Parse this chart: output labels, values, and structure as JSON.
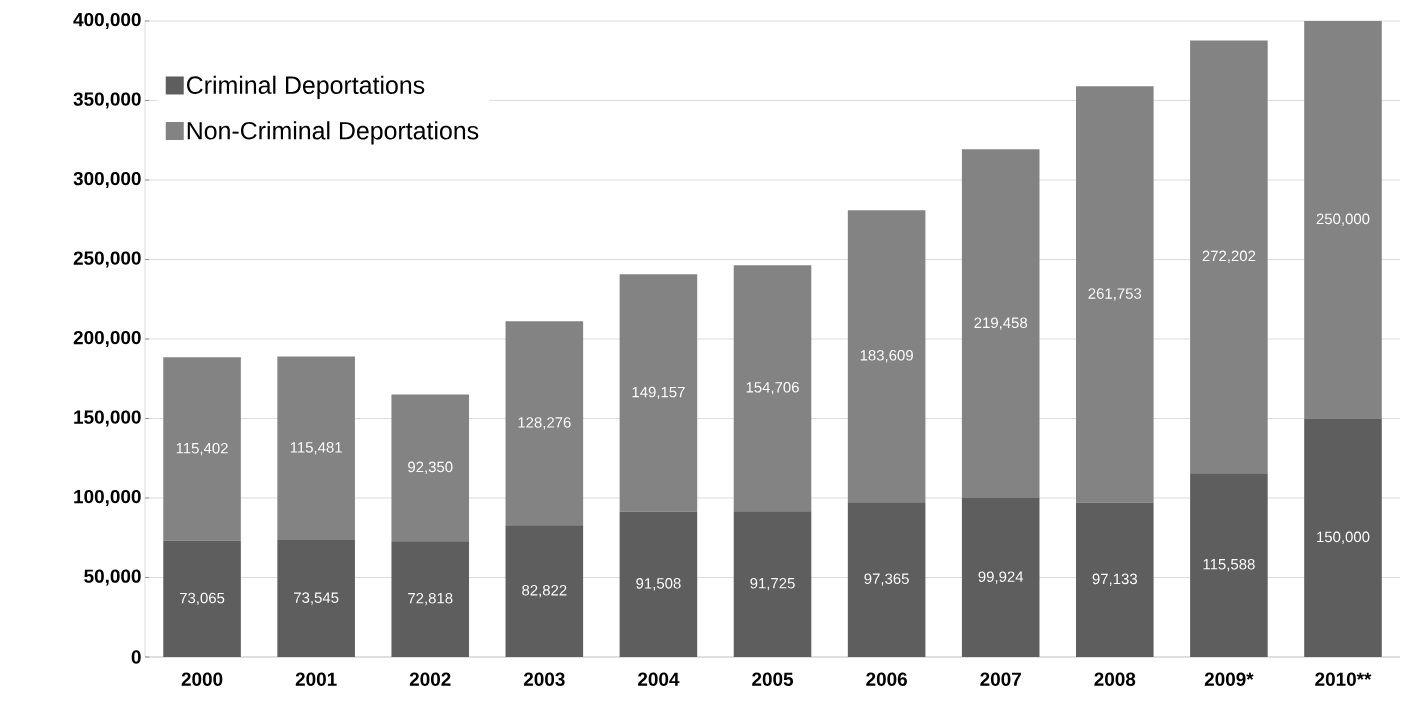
{
  "chart_data": {
    "type": "bar",
    "stacked": true,
    "categories": [
      "2000",
      "2001",
      "2002",
      "2003",
      "2004",
      "2005",
      "2006",
      "2007",
      "2008",
      "2009*",
      "2010**"
    ],
    "series": [
      {
        "name": "Criminal Deportations",
        "color": "#5e5e5e",
        "values": [
          73065,
          73545,
          72818,
          82822,
          91508,
          91725,
          97365,
          99924,
          97133,
          115588,
          150000
        ],
        "value_labels": [
          "73,065",
          "73,545",
          "72,818",
          "82,822",
          "91,508",
          "91,725",
          "97,365",
          "99,924",
          "97,133",
          "115,588",
          "150,000"
        ]
      },
      {
        "name": "Non-Criminal Deportations",
        "color": "#838383",
        "values": [
          115402,
          115481,
          92350,
          128276,
          149157,
          154706,
          183609,
          219458,
          261753,
          272202,
          250000
        ],
        "value_labels": [
          "115,402",
          "115,481",
          "92,350",
          "128,276",
          "149,157",
          "154,706",
          "183,609",
          "219,458",
          "261,753",
          "272,202",
          "250,000"
        ]
      }
    ],
    "ylim": [
      0,
      400000
    ],
    "yticks": [
      0,
      {
        "value": 50000,
        "label": "50,000"
      },
      {
        "value": 100000,
        "label": "100,000"
      },
      {
        "value": 150000,
        "label": "150,000"
      },
      {
        "value": 200000,
        "label": "200,000"
      },
      {
        "value": 250000,
        "label": "250,000"
      },
      {
        "value": 300000,
        "label": "300,000"
      },
      {
        "value": 350000,
        "label": "350,000"
      },
      {
        "value": 400000,
        "label": "400,000"
      }
    ],
    "grid": "y",
    "legend": "top left"
  }
}
